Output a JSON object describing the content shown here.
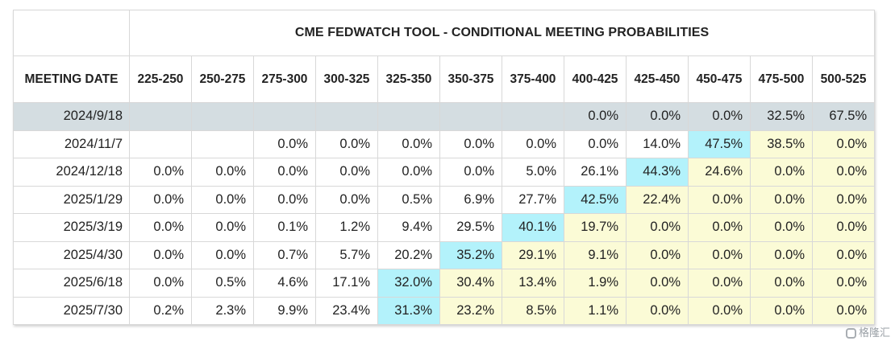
{
  "table": {
    "title": "CME FEDWATCH TOOL - CONDITIONAL MEETING PROBABILITIES",
    "date_header": "MEETING DATE",
    "columns": [
      "225-250",
      "250-275",
      "275-300",
      "300-325",
      "325-350",
      "350-375",
      "375-400",
      "400-425",
      "425-450",
      "450-475",
      "475-500",
      "500-525"
    ],
    "rows": [
      {
        "date": "2024/9/18",
        "current": true,
        "values": [
          "",
          "",
          "",
          "",
          "",
          "",
          "",
          "0.0%",
          "0.0%",
          "0.0%",
          "32.5%",
          "67.5%"
        ],
        "highlight": -1
      },
      {
        "date": "2024/11/7",
        "current": false,
        "values": [
          "",
          "",
          "0.0%",
          "0.0%",
          "0.0%",
          "0.0%",
          "0.0%",
          "0.0%",
          "14.0%",
          "47.5%",
          "38.5%",
          "0.0%"
        ],
        "highlight": 9
      },
      {
        "date": "2024/12/18",
        "current": false,
        "values": [
          "0.0%",
          "0.0%",
          "0.0%",
          "0.0%",
          "0.0%",
          "0.0%",
          "5.0%",
          "26.1%",
          "44.3%",
          "24.6%",
          "0.0%",
          "0.0%"
        ],
        "highlight": 8
      },
      {
        "date": "2025/1/29",
        "current": false,
        "values": [
          "0.0%",
          "0.0%",
          "0.0%",
          "0.0%",
          "0.5%",
          "6.9%",
          "27.7%",
          "42.5%",
          "22.4%",
          "0.0%",
          "0.0%",
          "0.0%"
        ],
        "highlight": 7
      },
      {
        "date": "2025/3/19",
        "current": false,
        "values": [
          "0.0%",
          "0.0%",
          "0.1%",
          "1.2%",
          "9.4%",
          "29.5%",
          "40.1%",
          "19.7%",
          "0.0%",
          "0.0%",
          "0.0%",
          "0.0%"
        ],
        "highlight": 6
      },
      {
        "date": "2025/4/30",
        "current": false,
        "values": [
          "0.0%",
          "0.0%",
          "0.7%",
          "5.7%",
          "20.2%",
          "35.2%",
          "29.1%",
          "9.1%",
          "0.0%",
          "0.0%",
          "0.0%",
          "0.0%"
        ],
        "highlight": 5
      },
      {
        "date": "2025/6/18",
        "current": false,
        "values": [
          "0.0%",
          "0.5%",
          "4.6%",
          "17.1%",
          "32.0%",
          "30.4%",
          "13.4%",
          "1.9%",
          "0.0%",
          "0.0%",
          "0.0%",
          "0.0%"
        ],
        "highlight": 4
      },
      {
        "date": "2025/7/30",
        "current": false,
        "values": [
          "0.2%",
          "2.3%",
          "9.9%",
          "23.4%",
          "31.3%",
          "23.2%",
          "8.5%",
          "1.1%",
          "0.0%",
          "0.0%",
          "0.0%",
          "0.0%"
        ],
        "highlight": 4
      }
    ]
  },
  "colors": {
    "current_row": "#d4dde1",
    "highlight": "#b3f2fb",
    "above_highlight": "#fbfbd6"
  },
  "watermark": {
    "text": "格隆汇",
    "icon": "gelonghui-logo-icon"
  }
}
